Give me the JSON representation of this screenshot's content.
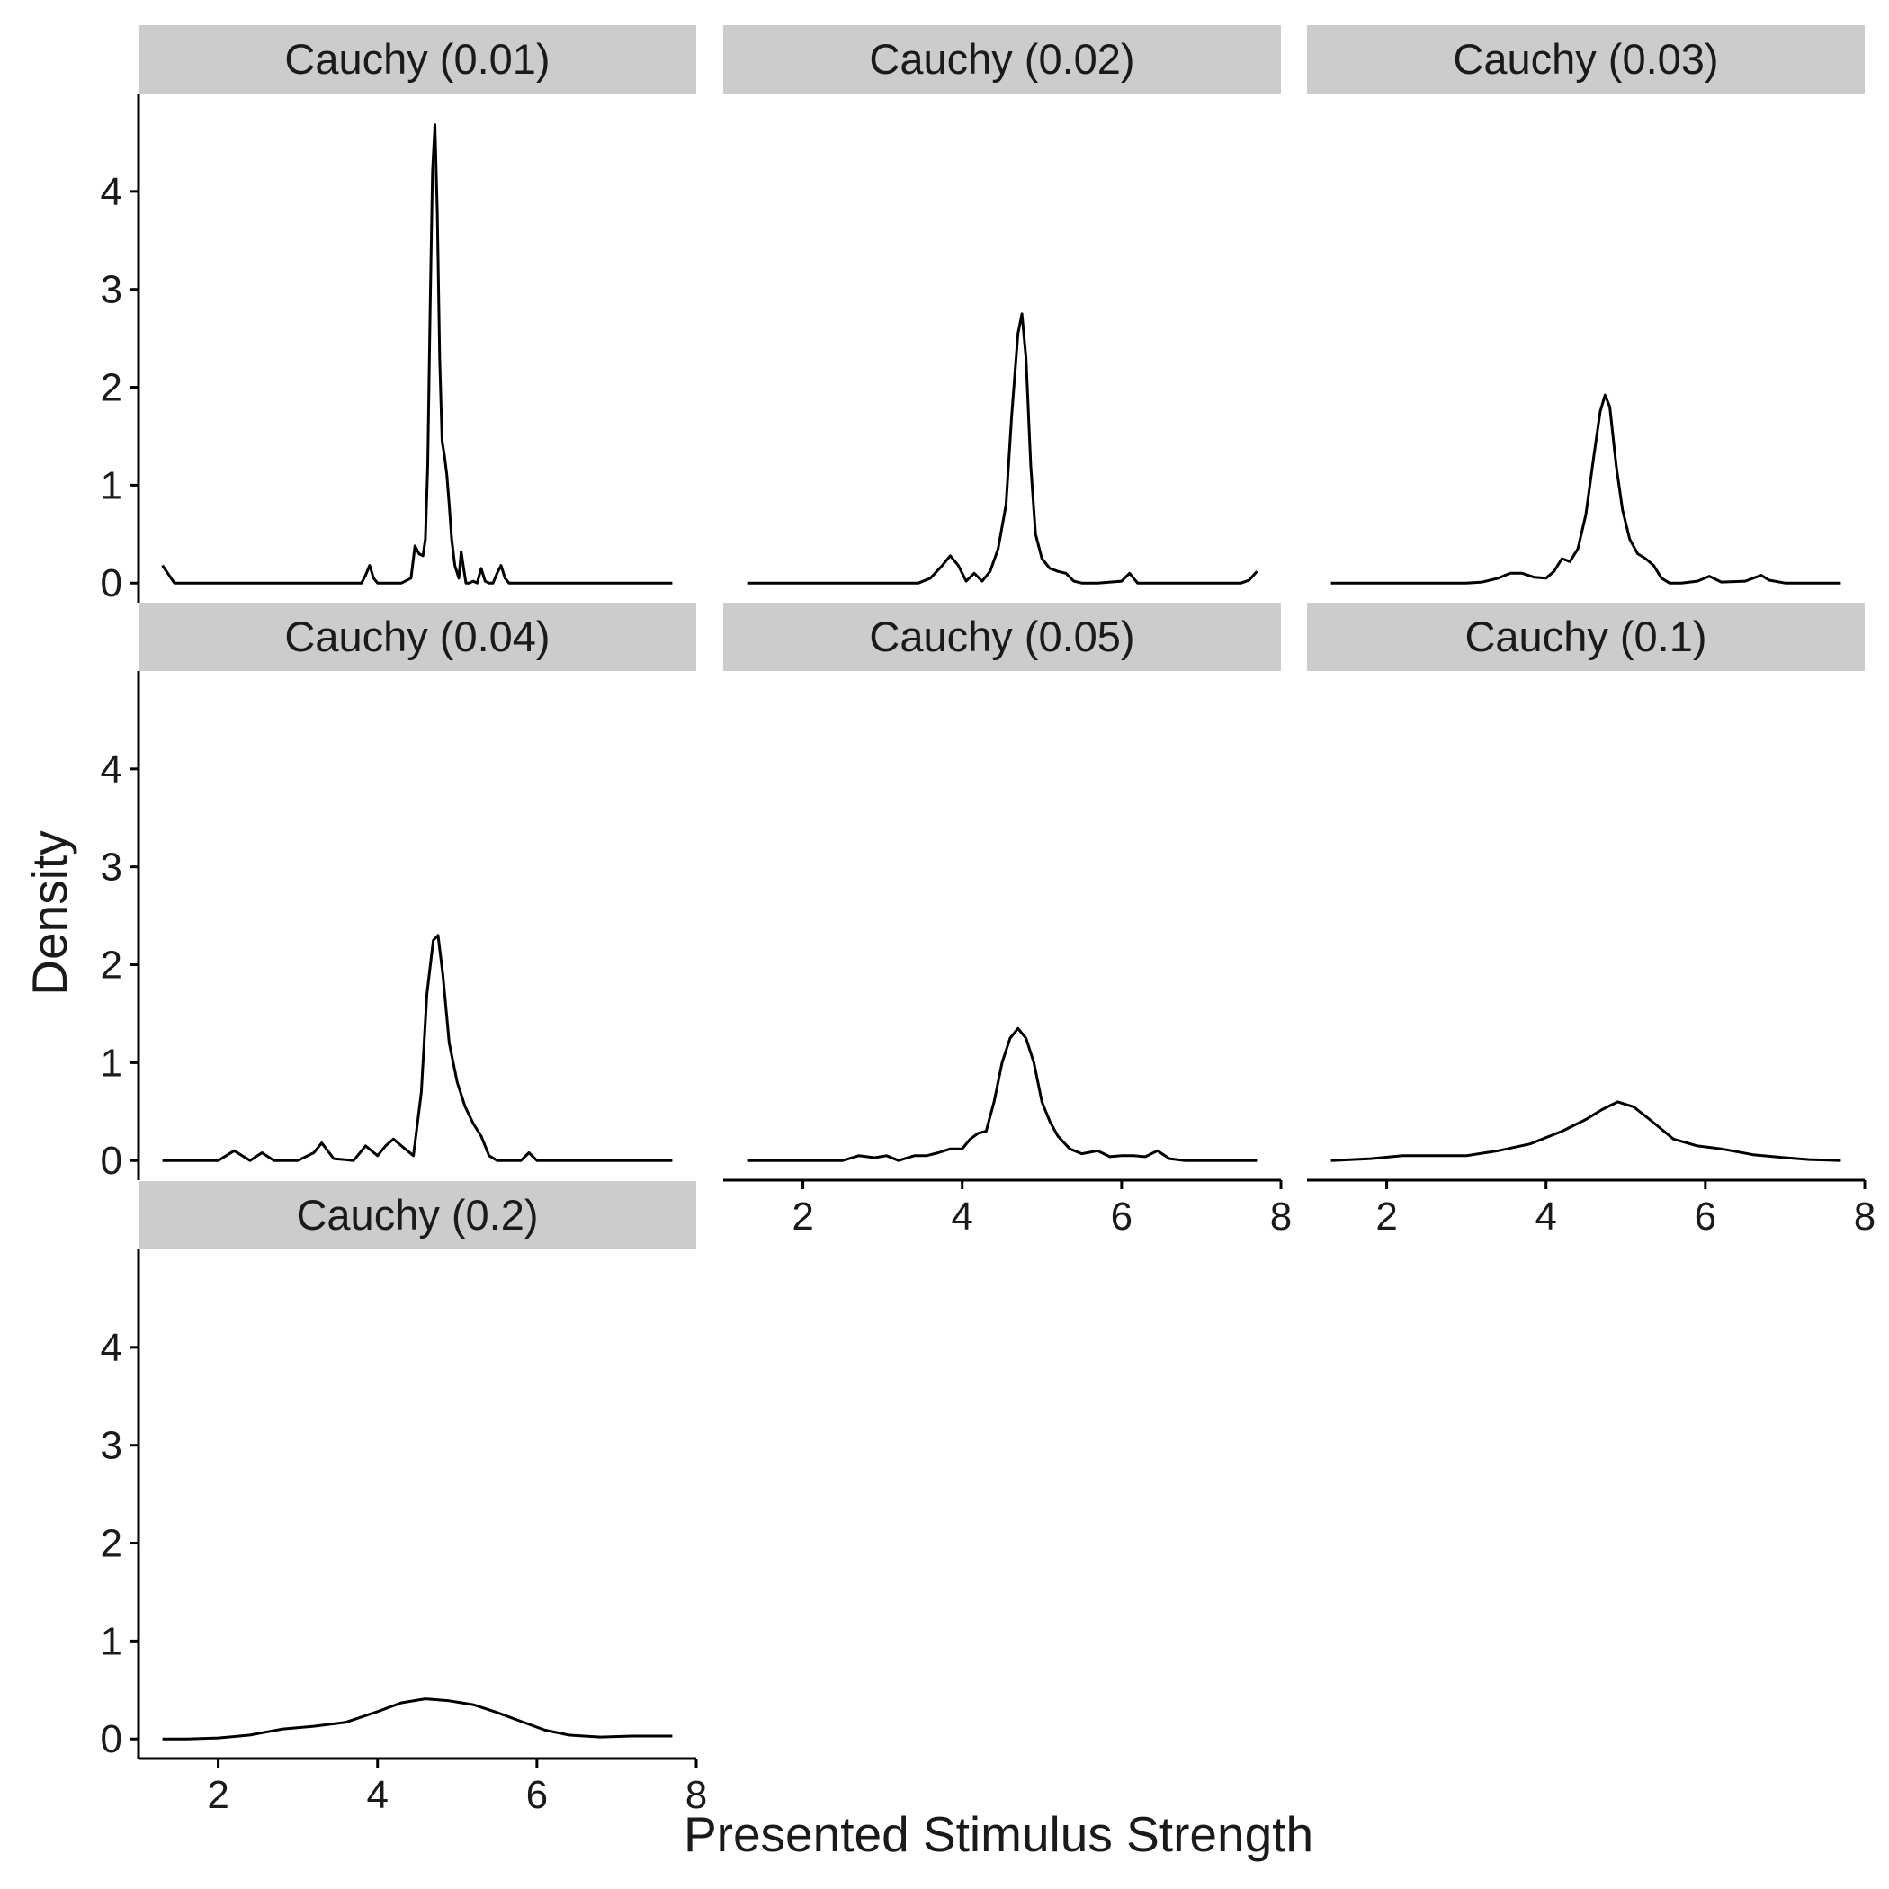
{
  "chart_data": {
    "type": "line",
    "layout": "facet_wrap",
    "xlabel": "Presented Stimulus Strength",
    "ylabel": "Density",
    "xlim": [
      1.0,
      8.0
    ],
    "ylim": [
      -0.2,
      5.0
    ],
    "x_ticks": [
      2,
      4,
      6,
      8
    ],
    "y_ticks": [
      0,
      1,
      2,
      3,
      4
    ],
    "grid": false,
    "line_color": "#000000",
    "strip_color": "#cccccc",
    "panels": [
      {
        "label": "Cauchy (0.01)",
        "x": [
          1.3,
          1.45,
          2.0,
          3.0,
          3.8,
          3.85,
          3.9,
          3.95,
          4.0,
          4.3,
          4.42,
          4.47,
          4.52,
          4.57,
          4.6,
          4.63,
          4.66,
          4.69,
          4.72,
          4.75,
          4.78,
          4.81,
          4.84,
          4.87,
          4.9,
          4.93,
          4.97,
          5.02,
          5.05,
          5.08,
          5.11,
          5.15,
          5.2,
          5.25,
          5.3,
          5.35,
          5.4,
          5.45,
          5.5,
          5.55,
          5.6,
          5.65,
          5.75,
          6.0,
          7.0,
          7.7
        ],
        "y": [
          0.18,
          0.0,
          0.0,
          0.0,
          0.0,
          0.08,
          0.18,
          0.05,
          0.0,
          0.0,
          0.05,
          0.38,
          0.3,
          0.28,
          0.45,
          1.2,
          2.8,
          4.2,
          4.68,
          3.8,
          2.3,
          1.45,
          1.3,
          1.1,
          0.8,
          0.45,
          0.18,
          0.05,
          0.32,
          0.15,
          0.0,
          0.0,
          0.02,
          0.0,
          0.15,
          0.02,
          0.0,
          0.0,
          0.1,
          0.18,
          0.05,
          0.0,
          0.0,
          0.0,
          0.0,
          0.0
        ]
      },
      {
        "label": "Cauchy (0.02)",
        "x": [
          1.3,
          2.0,
          3.0,
          3.45,
          3.6,
          3.75,
          3.85,
          3.95,
          4.05,
          4.15,
          4.25,
          4.35,
          4.45,
          4.55,
          4.62,
          4.7,
          4.75,
          4.8,
          4.86,
          4.92,
          5.0,
          5.1,
          5.2,
          5.3,
          5.4,
          5.5,
          5.7,
          6.0,
          6.1,
          6.2,
          6.5,
          7.0,
          7.5,
          7.6,
          7.7
        ],
        "y": [
          0.0,
          0.0,
          0.0,
          0.0,
          0.05,
          0.18,
          0.28,
          0.18,
          0.02,
          0.1,
          0.02,
          0.12,
          0.35,
          0.8,
          1.7,
          2.55,
          2.75,
          2.3,
          1.2,
          0.5,
          0.25,
          0.15,
          0.12,
          0.1,
          0.02,
          0.0,
          0.0,
          0.02,
          0.1,
          0.0,
          0.0,
          0.0,
          0.0,
          0.03,
          0.12
        ]
      },
      {
        "label": "Cauchy (0.03)",
        "x": [
          1.3,
          2.0,
          3.0,
          3.2,
          3.4,
          3.55,
          3.7,
          3.85,
          4.0,
          4.1,
          4.2,
          4.3,
          4.4,
          4.5,
          4.6,
          4.68,
          4.74,
          4.8,
          4.88,
          4.96,
          5.05,
          5.15,
          5.25,
          5.35,
          5.45,
          5.55,
          5.7,
          5.9,
          6.05,
          6.2,
          6.5,
          6.7,
          6.8,
          7.0,
          7.7
        ],
        "y": [
          0.0,
          0.0,
          0.0,
          0.01,
          0.05,
          0.1,
          0.1,
          0.06,
          0.05,
          0.12,
          0.25,
          0.22,
          0.35,
          0.7,
          1.3,
          1.75,
          1.92,
          1.8,
          1.2,
          0.75,
          0.45,
          0.3,
          0.25,
          0.18,
          0.05,
          0.0,
          0.0,
          0.02,
          0.07,
          0.01,
          0.02,
          0.08,
          0.03,
          0.0,
          0.0
        ]
      },
      {
        "label": "Cauchy (0.04)",
        "x": [
          1.3,
          2.0,
          2.1,
          2.2,
          2.4,
          2.55,
          2.7,
          3.0,
          3.2,
          3.3,
          3.45,
          3.7,
          3.85,
          4.0,
          4.1,
          4.2,
          4.3,
          4.45,
          4.55,
          4.62,
          4.7,
          4.76,
          4.82,
          4.9,
          5.0,
          5.1,
          5.2,
          5.3,
          5.4,
          5.5,
          5.8,
          5.9,
          6.0,
          6.5,
          7.7
        ],
        "y": [
          0.0,
          0.0,
          0.05,
          0.1,
          0.0,
          0.08,
          0.0,
          0.0,
          0.08,
          0.18,
          0.02,
          0.0,
          0.15,
          0.05,
          0.15,
          0.22,
          0.15,
          0.05,
          0.7,
          1.7,
          2.25,
          2.3,
          1.9,
          1.2,
          0.8,
          0.55,
          0.38,
          0.25,
          0.05,
          0.0,
          0.0,
          0.08,
          0.0,
          0.0,
          0.0
        ]
      },
      {
        "label": "Cauchy (0.05)",
        "x": [
          1.3,
          2.0,
          2.5,
          2.7,
          2.9,
          3.05,
          3.2,
          3.4,
          3.55,
          3.7,
          3.85,
          4.0,
          4.1,
          4.2,
          4.3,
          4.4,
          4.5,
          4.6,
          4.7,
          4.8,
          4.9,
          5.0,
          5.1,
          5.2,
          5.35,
          5.5,
          5.7,
          5.85,
          6.0,
          6.15,
          6.3,
          6.45,
          6.6,
          6.8,
          7.0,
          7.7
        ],
        "y": [
          0.0,
          0.0,
          0.0,
          0.05,
          0.03,
          0.05,
          0.0,
          0.05,
          0.05,
          0.08,
          0.12,
          0.12,
          0.22,
          0.28,
          0.3,
          0.6,
          1.0,
          1.25,
          1.35,
          1.25,
          1.0,
          0.6,
          0.4,
          0.25,
          0.12,
          0.07,
          0.1,
          0.04,
          0.05,
          0.05,
          0.04,
          0.1,
          0.02,
          0.0,
          0.0,
          0.0
        ]
      },
      {
        "label": "Cauchy (0.1)",
        "x": [
          1.3,
          1.8,
          2.2,
          2.6,
          3.0,
          3.4,
          3.8,
          4.2,
          4.5,
          4.7,
          4.9,
          5.1,
          5.3,
          5.6,
          5.9,
          6.2,
          6.6,
          7.0,
          7.3,
          7.7
        ],
        "y": [
          0.0,
          0.02,
          0.05,
          0.05,
          0.05,
          0.1,
          0.17,
          0.3,
          0.42,
          0.52,
          0.6,
          0.55,
          0.42,
          0.22,
          0.15,
          0.12,
          0.06,
          0.03,
          0.01,
          0.0
        ]
      },
      {
        "label": "Cauchy (0.2)",
        "x": [
          1.3,
          1.6,
          2.0,
          2.4,
          2.8,
          3.2,
          3.6,
          4.0,
          4.3,
          4.6,
          4.9,
          5.2,
          5.5,
          5.8,
          6.1,
          6.4,
          6.8,
          7.2,
          7.7
        ],
        "y": [
          0.0,
          0.0,
          0.01,
          0.04,
          0.1,
          0.13,
          0.17,
          0.28,
          0.37,
          0.41,
          0.39,
          0.35,
          0.27,
          0.18,
          0.09,
          0.04,
          0.02,
          0.03,
          0.03
        ]
      }
    ]
  }
}
